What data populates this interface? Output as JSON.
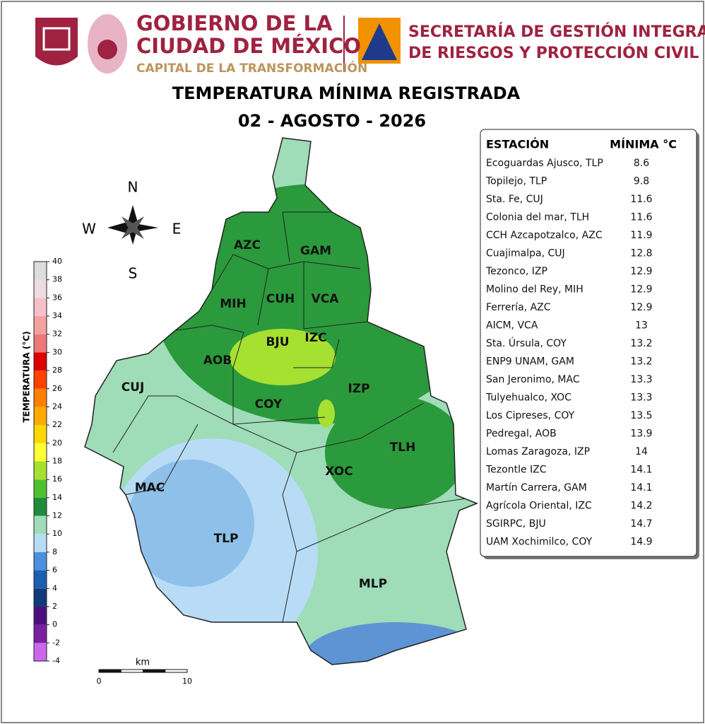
{
  "header": {
    "government": [
      "GOBIERNO DE LA",
      "CIUDAD DE MÉXICO"
    ],
    "tagline": "CAPITAL DE LA TRANSFORMACIÓN",
    "agency": [
      "SECRETARÍA DE GESTIÓN INTEGRAL",
      "DE RIESGOS Y PROTECCIÓN CIVIL"
    ]
  },
  "title": "TEMPERATURA MÍNIMA REGISTRADA",
  "date": "02 - AGOSTO - 2026",
  "table": {
    "header": [
      "ESTACIÓN",
      "MÍNIMA °C"
    ],
    "rows": [
      [
        "Ecoguardas Ajusco, TLP",
        8.6
      ],
      [
        "Topilejo, TLP",
        9.8
      ],
      [
        "Sta. Fe, CUJ",
        11.6
      ],
      [
        "Colonia del mar, TLH",
        11.6
      ],
      [
        "CCH Azcapotzalco, AZC",
        11.9
      ],
      [
        "Cuajimalpa, CUJ",
        12.8
      ],
      [
        "Tezonco, IZP",
        12.9
      ],
      [
        "Molino del Rey, MIH",
        12.9
      ],
      [
        "Ferrería, AZC",
        12.9
      ],
      [
        "AICM, VCA",
        13
      ],
      [
        "Sta. Úrsula, COY",
        13.2
      ],
      [
        "ENP9 UNAM,  GAM",
        13.2
      ],
      [
        "San Jeronimo, MAC",
        13.3
      ],
      [
        "Tulyehualco, XOC",
        13.3
      ],
      [
        "Los Cipreses, COY",
        13.5
      ],
      [
        "Pedregal, AOB",
        13.9
      ],
      [
        "Lomas Zaragoza, IZP",
        14
      ],
      [
        "Tezontle IZC",
        14.1
      ],
      [
        "Martín Carrera, GAM",
        14.1
      ],
      [
        "Agrícola Oriental, IZC",
        14.2
      ],
      [
        "SGIRPC, BJU",
        14.7
      ],
      [
        "UAM Xochimilco, COY",
        14.9
      ]
    ]
  },
  "map": {
    "labels": [
      "AZC",
      "GAM",
      "MIH",
      "CUH",
      "VCA",
      "BJU",
      "IZC",
      "AOB",
      "CUJ",
      "IZP",
      "COY",
      "TLH",
      "XOC",
      "MAC",
      "TLP",
      "MLP"
    ],
    "compass": {
      "n": "N",
      "s": "S",
      "w": "W",
      "e": "E"
    }
  },
  "legend": {
    "title": "TEMPERATURA (°C)",
    "ticks": [
      -4,
      -2,
      0,
      2,
      4,
      6,
      8,
      10,
      12,
      14,
      16,
      18,
      20,
      22,
      24,
      26,
      28,
      30,
      32,
      34,
      36,
      38,
      40
    ],
    "colors": [
      "#cc66ee",
      "#7a1fa0",
      "#4b0f80",
      "#103a7a",
      "#1c5fb0",
      "#4a90e0",
      "#b8dcf5",
      "#9fdcb8",
      "#1e8c3a",
      "#50c030",
      "#a6e030",
      "#ffff33",
      "#ffd700",
      "#ffaa00",
      "#ff8000",
      "#ff4000",
      "#dd0000",
      "#ee7777",
      "#f3a0a0",
      "#f5c0c8",
      "#eedde0",
      "#dcdcdc"
    ]
  },
  "scale": {
    "unit": "km",
    "ticks": [
      0,
      10
    ]
  }
}
